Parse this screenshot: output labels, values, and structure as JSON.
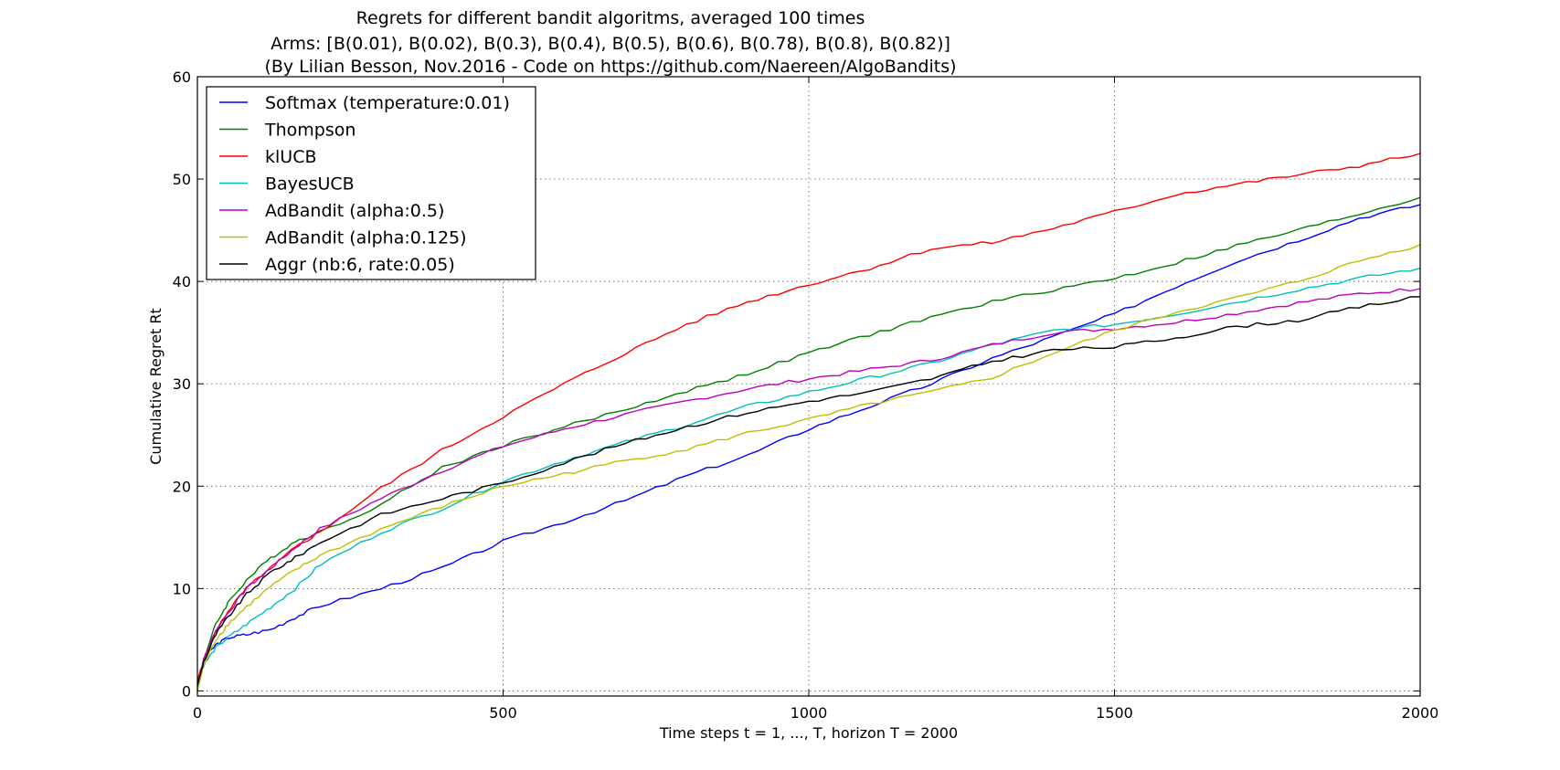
{
  "chart_data": {
    "type": "line",
    "title_lines": [
      "Regrets for different bandit algoritms, averaged 100 times",
      "Arms: [B(0.01), B(0.02), B(0.3), B(0.4), B(0.5), B(0.6), B(0.78), B(0.8), B(0.82)]",
      "(By Lilian Besson, Nov.2016 - Code on https://github.com/Naereen/AlgoBandits)"
    ],
    "xlabel": "Time steps t = 1, ..., T, horizon T = 2000",
    "ylabel": "Cumulative Regret Rt",
    "xlim": [
      0,
      2000
    ],
    "ylim": [
      -0.5,
      60
    ],
    "xticks": [
      0,
      500,
      1000,
      1500,
      2000
    ],
    "yticks": [
      0,
      10,
      20,
      30,
      40,
      50,
      60
    ],
    "grid": true,
    "legend_position": "upper-left",
    "series": [
      {
        "name": "Softmax (temperature:0.01)",
        "color": "#0000ff",
        "x": [
          0,
          10,
          30,
          50,
          80,
          120,
          160,
          200,
          300,
          400,
          500,
          600,
          700,
          800,
          900,
          1000,
          1100,
          1200,
          1300,
          1400,
          1500,
          1600,
          1700,
          1800,
          1900,
          2000
        ],
        "y": [
          0,
          3.0,
          4.5,
          5.2,
          5.5,
          6.0,
          7.2,
          8.3,
          10.0,
          12.0,
          14.6,
          16.5,
          18.6,
          21.0,
          23.0,
          25.6,
          27.8,
          30.0,
          32.5,
          34.6,
          36.8,
          39.5,
          42.0,
          44.0,
          46.2,
          47.5
        ]
      },
      {
        "name": "Thompson",
        "color": "#008000",
        "x": [
          0,
          10,
          30,
          50,
          80,
          120,
          160,
          200,
          300,
          400,
          500,
          600,
          700,
          800,
          900,
          1000,
          1100,
          1200,
          1300,
          1400,
          1500,
          1600,
          1700,
          1800,
          1900,
          2000
        ],
        "y": [
          0,
          3.0,
          6.5,
          8.6,
          10.8,
          13.0,
          14.6,
          15.5,
          18.2,
          21.8,
          24.0,
          25.8,
          27.5,
          29.3,
          31.0,
          33.0,
          34.8,
          36.5,
          38.0,
          39.2,
          40.3,
          41.8,
          43.5,
          45.0,
          46.6,
          48.2
        ]
      },
      {
        "name": "klUCB",
        "color": "#ff0000",
        "x": [
          0,
          10,
          30,
          50,
          80,
          120,
          160,
          200,
          300,
          400,
          500,
          600,
          700,
          800,
          900,
          1000,
          1100,
          1200,
          1300,
          1400,
          1500,
          1600,
          1700,
          1800,
          1900,
          2000
        ],
        "y": [
          1.0,
          3.0,
          5.8,
          7.8,
          10.0,
          12.0,
          14.0,
          15.5,
          19.8,
          23.5,
          26.8,
          30.0,
          33.0,
          35.8,
          38.0,
          39.7,
          41.3,
          43.2,
          43.8,
          45.2,
          46.8,
          48.5,
          49.5,
          50.4,
          51.3,
          52.5
        ]
      },
      {
        "name": "BayesUCB",
        "color": "#00bfbf",
        "x": [
          0,
          10,
          30,
          50,
          80,
          120,
          160,
          200,
          300,
          400,
          500,
          600,
          700,
          800,
          900,
          1000,
          1100,
          1200,
          1300,
          1400,
          1500,
          1600,
          1700,
          1800,
          1900,
          2000
        ],
        "y": [
          0,
          2.5,
          4.2,
          5.2,
          6.5,
          8.2,
          10.0,
          12.3,
          15.5,
          17.8,
          20.5,
          22.5,
          24.3,
          26.0,
          27.8,
          29.2,
          30.6,
          32.0,
          33.8,
          35.2,
          35.8,
          36.8,
          38.0,
          39.2,
          40.3,
          41.3
        ]
      },
      {
        "name": "AdBandit (alpha:0.5)",
        "color": "#bf00bf",
        "x": [
          0,
          10,
          30,
          50,
          80,
          120,
          160,
          200,
          300,
          400,
          500,
          600,
          700,
          800,
          900,
          1000,
          1100,
          1200,
          1300,
          1400,
          1500,
          1600,
          1700,
          1800,
          1900,
          2000
        ],
        "y": [
          0.5,
          3.0,
          5.9,
          7.6,
          10.0,
          12.0,
          14.0,
          15.8,
          18.8,
          21.5,
          23.9,
          25.6,
          27.0,
          28.3,
          29.5,
          30.5,
          31.4,
          32.3,
          33.8,
          35.0,
          35.4,
          36.0,
          36.9,
          37.9,
          38.8,
          39.3
        ]
      },
      {
        "name": "AdBandit (alpha:0.125)",
        "color": "#bfbf00",
        "x": [
          0,
          10,
          30,
          50,
          80,
          120,
          160,
          200,
          300,
          400,
          500,
          600,
          700,
          800,
          900,
          1000,
          1100,
          1200,
          1300,
          1400,
          1500,
          1600,
          1700,
          1800,
          1900,
          2000
        ],
        "y": [
          0,
          2.5,
          5.0,
          6.5,
          8.2,
          10.2,
          11.8,
          13.2,
          15.8,
          18.0,
          20.0,
          21.2,
          22.5,
          23.6,
          25.2,
          26.5,
          28.0,
          29.2,
          30.6,
          33.0,
          35.2,
          37.0,
          38.4,
          40.0,
          42.0,
          43.6
        ]
      },
      {
        "name": "Aggr (nb:6, rate:0.05)",
        "color": "#000000",
        "x": [
          0,
          10,
          30,
          50,
          80,
          120,
          160,
          200,
          300,
          400,
          500,
          600,
          700,
          800,
          900,
          1000,
          1100,
          1200,
          1300,
          1400,
          1500,
          1600,
          1700,
          1800,
          1900,
          2000
        ],
        "y": [
          0.5,
          2.8,
          5.5,
          7.2,
          9.4,
          11.6,
          13.0,
          14.5,
          17.2,
          18.8,
          20.3,
          22.3,
          24.2,
          25.8,
          27.2,
          28.3,
          29.2,
          30.5,
          32.2,
          33.3,
          33.6,
          34.5,
          35.6,
          36.2,
          37.5,
          38.5
        ]
      }
    ]
  }
}
